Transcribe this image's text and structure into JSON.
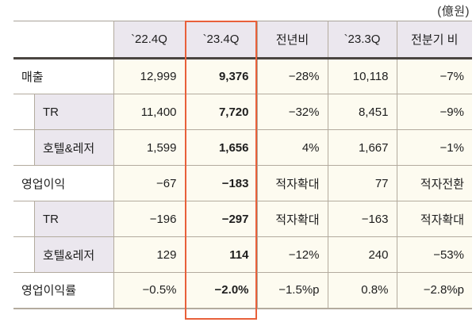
{
  "unit_label": "(億원)",
  "header": {
    "label": "",
    "cols": [
      "`22.4Q",
      "`23.4Q",
      "전년비",
      "`23.3Q",
      "전분기 비"
    ]
  },
  "highlight": {
    "column": "`23.4Q",
    "color": "#e8603a"
  },
  "rows": [
    {
      "label": "매출",
      "type": "main",
      "values": [
        "12,999",
        "9,376",
        "−28%",
        "10,118",
        "−7%"
      ]
    },
    {
      "label": "TR",
      "type": "sub",
      "values": [
        "11,400",
        "7,720",
        "−32%",
        "8,451",
        "−9%"
      ]
    },
    {
      "label": "호텔&레저",
      "type": "sub",
      "values": [
        "1,599",
        "1,656",
        "4%",
        "1,667",
        "−1%"
      ]
    },
    {
      "label": "영업이익",
      "type": "main",
      "values": [
        "−67",
        "−183",
        "적자확대",
        "77",
        "적자전환"
      ]
    },
    {
      "label": "TR",
      "type": "sub",
      "values": [
        "−196",
        "−297",
        "적자확대",
        "−163",
        "적자확대"
      ]
    },
    {
      "label": "호텔&레저",
      "type": "sub",
      "values": [
        "129",
        "114",
        "−12%",
        "240",
        "−53%"
      ]
    },
    {
      "label": "영업이익률",
      "type": "main",
      "values": [
        "−0.5%",
        "−2.0%",
        "−1.5%p",
        "0.8%",
        "−2.8%p"
      ]
    }
  ]
}
